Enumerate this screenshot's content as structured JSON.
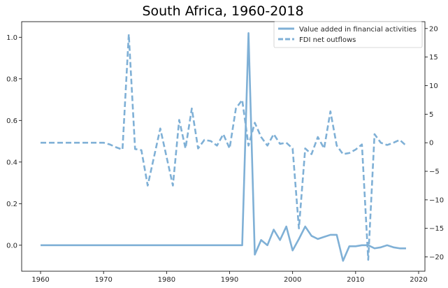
{
  "chart_data": {
    "type": "line",
    "title": "South Africa, 1960-2018",
    "xlabel": "",
    "ylabel": "",
    "y2label": "",
    "xlim": [
      1957.0,
      2021.0
    ],
    "ylim": [
      -0.125,
      1.075
    ],
    "y2lim": [
      -22.5,
      21.2
    ],
    "xticks": [
      1960,
      1970,
      1980,
      1990,
      2000,
      2010,
      2020
    ],
    "yticks": [
      0.0,
      0.2,
      0.4,
      0.6,
      0.8,
      1.0
    ],
    "ytick_labels": [
      "0.0",
      "0.2",
      "0.4",
      "0.6",
      "0.8",
      "1.0"
    ],
    "y2ticks": [
      -20,
      -15,
      -10,
      -5,
      0,
      5,
      10,
      15,
      20
    ],
    "y2tick_labels": [
      "−20",
      "−15",
      "−10",
      "−5",
      "0",
      "5",
      "10",
      "15",
      "20"
    ],
    "grid": false,
    "legend_position": "top-right",
    "line_color": "#7fb0d6",
    "series": [
      {
        "name": "Value added in financial activities",
        "axis": "left",
        "style": "solid",
        "x": [
          1960,
          1961,
          1962,
          1963,
          1964,
          1965,
          1966,
          1967,
          1968,
          1969,
          1970,
          1971,
          1972,
          1973,
          1974,
          1975,
          1976,
          1977,
          1978,
          1979,
          1980,
          1981,
          1982,
          1983,
          1984,
          1985,
          1986,
          1987,
          1988,
          1989,
          1990,
          1991,
          1992,
          1993,
          1994,
          1995,
          1996,
          1997,
          1998,
          1999,
          2000,
          2001,
          2002,
          2003,
          2004,
          2005,
          2006,
          2007,
          2008,
          2009,
          2010,
          2011,
          2012,
          2013,
          2014,
          2015,
          2016,
          2017,
          2018
        ],
        "y": [
          0,
          0,
          0,
          0,
          0,
          0,
          0,
          0,
          0,
          0,
          0,
          0,
          0,
          0,
          0,
          0,
          0,
          0,
          0,
          0,
          0,
          0,
          0,
          0,
          0,
          0,
          0,
          0,
          0,
          0,
          0,
          0,
          0,
          1.02,
          -0.045,
          0.025,
          0.0,
          0.075,
          0.025,
          0.09,
          -0.025,
          0.03,
          0.09,
          0.045,
          0.03,
          0.04,
          0.05,
          0.05,
          -0.075,
          -0.005,
          -0.005,
          0.0,
          0.0,
          -0.015,
          -0.01,
          0.0,
          -0.01,
          -0.015,
          -0.015
        ]
      },
      {
        "name": "FDI net outflows",
        "axis": "right",
        "style": "dashed",
        "x": [
          1960,
          1961,
          1962,
          1963,
          1964,
          1965,
          1966,
          1967,
          1968,
          1969,
          1970,
          1971,
          1972,
          1973,
          1974,
          1975,
          1976,
          1977,
          1978,
          1979,
          1980,
          1981,
          1982,
          1983,
          1984,
          1985,
          1986,
          1987,
          1988,
          1989,
          1990,
          1991,
          1992,
          1993,
          1994,
          1995,
          1996,
          1997,
          1998,
          1999,
          2000,
          2001,
          2002,
          2003,
          2004,
          2005,
          2006,
          2007,
          2008,
          2009,
          2010,
          2011,
          2012,
          2013,
          2014,
          2015,
          2016,
          2017,
          2018
        ],
        "y": [
          0,
          0,
          0,
          0,
          0,
          0,
          0,
          0,
          0,
          0,
          0,
          -0.3,
          -0.8,
          -1.2,
          19.0,
          -1.1,
          -1.3,
          -7.5,
          -2.5,
          2.5,
          -2.5,
          -7.5,
          4.0,
          -1.0,
          6.0,
          -1.0,
          0.5,
          0.3,
          -0.5,
          1.5,
          -1.0,
          6.0,
          7.5,
          -0.5,
          3.5,
          1.0,
          -0.5,
          1.5,
          -0.2,
          0.0,
          -1.0,
          -15.0,
          -1.0,
          -2.0,
          1.0,
          -1.0,
          5.5,
          -0.5,
          -2.0,
          -1.8,
          -1.2,
          -0.3,
          -20.5,
          1.5,
          0.0,
          -0.4,
          0.0,
          0.5,
          -0.5
        ]
      }
    ]
  }
}
